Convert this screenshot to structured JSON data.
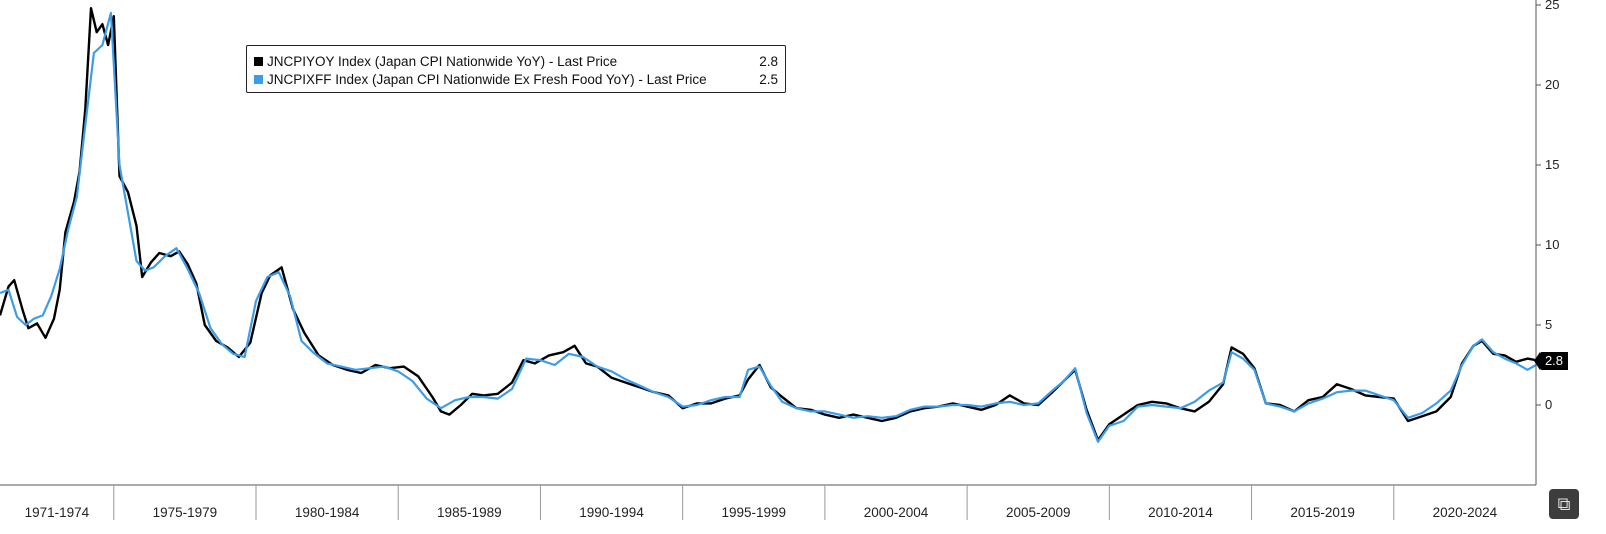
{
  "chart_data": {
    "type": "line",
    "x_tick_labels": [
      "1971-1974",
      "1975-1979",
      "1980-1984",
      "1985-1989",
      "1990-1994",
      "1995-1999",
      "2000-2004",
      "2005-2009",
      "2010-2014",
      "2015-2019",
      "2020-2024"
    ],
    "x_range": [
      1971.0,
      2025.0
    ],
    "y_ticks": [
      0,
      5,
      10,
      15,
      20,
      25
    ],
    "ylim": [
      -5,
      25
    ],
    "y_axis_side": "right",
    "grid": false,
    "legend_position": "top-left",
    "series": [
      {
        "name": "JNCPIYOY Index (Japan CPI Nationwide YoY) - Last Price",
        "last_value": "2.8",
        "color": "#000000",
        "x": [
          1971.0,
          1971.3,
          1971.5,
          1971.8,
          1972.0,
          1972.3,
          1972.6,
          1972.9,
          1973.1,
          1973.3,
          1973.6,
          1973.8,
          1974.0,
          1974.2,
          1974.4,
          1974.6,
          1974.8,
          1975.0,
          1975.2,
          1975.5,
          1975.8,
          1976.0,
          1976.3,
          1976.6,
          1977.0,
          1977.3,
          1977.6,
          1977.9,
          1978.2,
          1978.6,
          1979.0,
          1979.4,
          1979.8,
          1980.2,
          1980.5,
          1980.9,
          1981.3,
          1981.7,
          1982.2,
          1982.7,
          1983.2,
          1983.7,
          1984.2,
          1984.7,
          1985.2,
          1985.7,
          1986.2,
          1986.5,
          1986.8,
          1987.2,
          1987.6,
          1988.0,
          1988.5,
          1989.0,
          1989.4,
          1989.8,
          1990.3,
          1990.8,
          1991.2,
          1991.6,
          1992.0,
          1992.5,
          1993.0,
          1993.5,
          1994.0,
          1994.5,
          1995.0,
          1995.5,
          1996.0,
          1996.5,
          1997.0,
          1997.3,
          1997.7,
          1998.1,
          1998.5,
          1999.0,
          1999.5,
          2000.0,
          2000.5,
          2001.0,
          2001.5,
          2002.0,
          2002.5,
          2003.0,
          2003.5,
          2004.0,
          2004.5,
          2005.0,
          2005.5,
          2006.0,
          2006.5,
          2007.0,
          2007.5,
          2008.0,
          2008.4,
          2008.8,
          2009.2,
          2009.6,
          2010.0,
          2010.5,
          2011.0,
          2011.5,
          2012.0,
          2012.5,
          2013.0,
          2013.5,
          2014.0,
          2014.3,
          2014.7,
          2015.1,
          2015.5,
          2016.0,
          2016.5,
          2017.0,
          2017.5,
          2018.0,
          2018.5,
          2019.0,
          2019.5,
          2020.0,
          2020.5,
          2021.0,
          2021.5,
          2022.0,
          2022.4,
          2022.8,
          2023.1,
          2023.5,
          2023.9,
          2024.3,
          2024.7,
          2025.0
        ],
        "y": [
          5.6,
          7.4,
          7.8,
          5.9,
          4.8,
          5.1,
          4.2,
          5.4,
          7.2,
          10.8,
          12.7,
          14.6,
          18.5,
          24.8,
          23.3,
          23.8,
          22.5,
          24.3,
          14.3,
          13.3,
          11.2,
          8.0,
          8.9,
          9.5,
          9.3,
          9.6,
          8.8,
          7.6,
          5.0,
          4.0,
          3.6,
          3.0,
          3.9,
          7.0,
          8.1,
          8.6,
          6.0,
          4.5,
          3.1,
          2.5,
          2.2,
          2.0,
          2.5,
          2.3,
          2.4,
          1.8,
          0.5,
          -0.4,
          -0.6,
          0.0,
          0.7,
          0.6,
          0.7,
          1.4,
          2.8,
          2.6,
          3.1,
          3.3,
          3.7,
          2.6,
          2.4,
          1.7,
          1.4,
          1.1,
          0.8,
          0.6,
          -0.2,
          0.1,
          0.1,
          0.4,
          0.6,
          1.6,
          2.5,
          1.1,
          0.5,
          -0.2,
          -0.3,
          -0.6,
          -0.8,
          -0.6,
          -0.8,
          -1.0,
          -0.8,
          -0.4,
          -0.2,
          -0.1,
          0.1,
          -0.1,
          -0.3,
          0.0,
          0.6,
          0.1,
          0.0,
          0.8,
          1.5,
          2.2,
          -0.3,
          -2.2,
          -1.2,
          -0.6,
          0.0,
          0.2,
          0.1,
          -0.2,
          -0.4,
          0.2,
          1.3,
          3.6,
          3.2,
          2.3,
          0.1,
          0.0,
          -0.4,
          0.3,
          0.5,
          1.3,
          1.0,
          0.6,
          0.5,
          0.4,
          -1.0,
          -0.7,
          -0.4,
          0.5,
          2.6,
          3.7,
          4.0,
          3.2,
          3.1,
          2.7,
          2.9,
          2.8
        ]
      },
      {
        "name": "JNCPIXFF Index (Japan CPI Nationwide Ex Fresh Food YoY) - Last Price",
        "last_value": "2.5",
        "color": "#3b9dea",
        "x": [
          1971.0,
          1971.3,
          1971.6,
          1971.9,
          1972.2,
          1972.5,
          1972.8,
          1973.1,
          1973.4,
          1973.7,
          1974.0,
          1974.3,
          1974.6,
          1974.9,
          1975.2,
          1975.5,
          1975.8,
          1976.1,
          1976.4,
          1976.8,
          1977.2,
          1977.6,
          1978.0,
          1978.4,
          1978.8,
          1979.2,
          1979.6,
          1980.0,
          1980.4,
          1980.8,
          1981.2,
          1981.6,
          1982.0,
          1982.5,
          1983.0,
          1983.5,
          1984.0,
          1984.5,
          1985.0,
          1985.5,
          1986.0,
          1986.5,
          1987.0,
          1987.5,
          1988.0,
          1988.5,
          1989.0,
          1989.5,
          1990.0,
          1990.5,
          1991.0,
          1991.5,
          1992.0,
          1992.5,
          1993.0,
          1993.5,
          1994.0,
          1994.5,
          1995.0,
          1995.5,
          1996.0,
          1996.5,
          1997.0,
          1997.3,
          1997.7,
          1998.1,
          1998.5,
          1999.0,
          1999.5,
          2000.0,
          2000.5,
          2001.0,
          2001.5,
          2002.0,
          2002.5,
          2003.0,
          2003.5,
          2004.0,
          2004.5,
          2005.0,
          2005.5,
          2006.0,
          2006.5,
          2007.0,
          2007.5,
          2008.0,
          2008.4,
          2008.8,
          2009.2,
          2009.6,
          2010.0,
          2010.5,
          2011.0,
          2011.5,
          2012.0,
          2012.5,
          2013.0,
          2013.5,
          2014.0,
          2014.3,
          2014.7,
          2015.1,
          2015.5,
          2016.0,
          2016.5,
          2017.0,
          2017.5,
          2018.0,
          2018.5,
          2019.0,
          2019.5,
          2020.0,
          2020.5,
          2021.0,
          2021.5,
          2022.0,
          2022.4,
          2022.8,
          2023.1,
          2023.5,
          2023.9,
          2024.3,
          2024.7,
          2025.0
        ],
        "y": [
          7.0,
          7.2,
          5.5,
          5.0,
          5.4,
          5.6,
          6.8,
          8.5,
          11.0,
          13.0,
          17.5,
          22.0,
          22.5,
          24.5,
          15.0,
          12.0,
          9.0,
          8.4,
          8.6,
          9.3,
          9.8,
          8.5,
          7.0,
          4.8,
          3.8,
          3.2,
          3.0,
          6.5,
          8.0,
          8.3,
          6.8,
          4.0,
          3.3,
          2.6,
          2.4,
          2.2,
          2.3,
          2.4,
          2.1,
          1.5,
          0.4,
          -0.2,
          0.3,
          0.5,
          0.5,
          0.4,
          1.0,
          2.9,
          2.8,
          2.5,
          3.2,
          3.0,
          2.4,
          2.1,
          1.6,
          1.2,
          0.8,
          0.5,
          -0.1,
          0.0,
          0.3,
          0.5,
          0.5,
          2.2,
          2.4,
          1.2,
          0.2,
          -0.2,
          -0.4,
          -0.4,
          -0.6,
          -0.8,
          -0.7,
          -0.8,
          -0.7,
          -0.3,
          -0.1,
          -0.1,
          0.0,
          0.0,
          -0.1,
          0.1,
          0.2,
          0.0,
          0.1,
          0.9,
          1.5,
          2.3,
          -0.5,
          -2.3,
          -1.3,
          -1.0,
          -0.1,
          0.0,
          -0.1,
          -0.2,
          0.2,
          0.9,
          1.4,
          3.3,
          2.9,
          2.2,
          0.1,
          -0.1,
          -0.4,
          0.1,
          0.4,
          0.8,
          0.9,
          0.9,
          0.6,
          0.3,
          -0.8,
          -0.5,
          0.1,
          0.9,
          2.5,
          3.7,
          4.1,
          3.3,
          2.9,
          2.6,
          2.2,
          2.5
        ]
      }
    ]
  },
  "legend": {
    "items": [
      {
        "label": "JNCPIYOY Index (Japan CPI Nationwide YoY) - Last Price",
        "value": "2.8",
        "color": "#000000"
      },
      {
        "label": "JNCPIXFF Index (Japan CPI Nationwide Ex Fresh Food YoY) - Last Price",
        "value": "2.5",
        "color": "#3b9dea"
      }
    ]
  },
  "badge": {
    "value": "2.8"
  },
  "corner_icon": {
    "icon": "export-icon",
    "glyph": "⧉"
  }
}
